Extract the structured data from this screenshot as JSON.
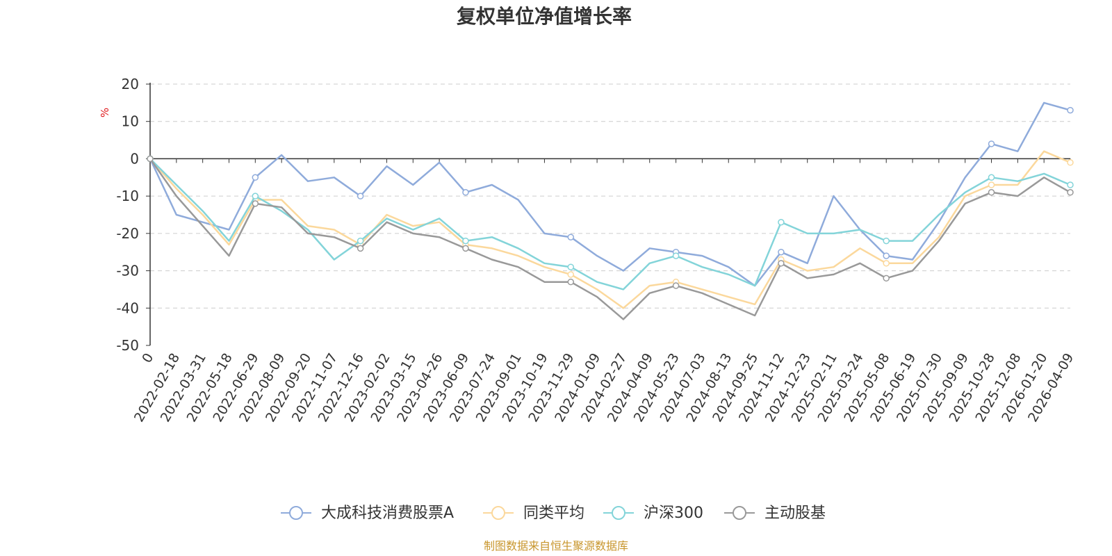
{
  "chart_data": {
    "type": "line",
    "title": "复权单位净值增长率",
    "ylabel": "%",
    "xlabel": "",
    "ylim": [
      -50,
      20
    ],
    "yticks": [
      20,
      10,
      0,
      -10,
      -20,
      -30,
      -40,
      -50
    ],
    "xticks": [
      "0",
      "2022-02-18",
      "2022-03-31",
      "2022-05-18",
      "2022-06-29",
      "2022-08-09",
      "2022-09-20",
      "2022-11-07",
      "2022-12-16",
      "2023-02-02",
      "2023-03-15",
      "2023-04-26",
      "2023-06-09",
      "2023-07-24",
      "2023-09-01",
      "2023-10-19",
      "2023-11-29",
      "2024-01-09",
      "2024-02-27",
      "2024-04-09",
      "2024-05-23",
      "2024-07-03",
      "2024-08-13",
      "2024-09-25",
      "2024-11-12",
      "2024-12-23",
      "2025-02-11",
      "2025-03-24",
      "2025-05-08",
      "2025-06-19",
      "2025-07-30",
      "2025-09-09",
      "2025-10-28",
      "2025-12-08",
      "2026-01-20",
      "2026-04-09"
    ],
    "series": [
      {
        "name": "大成科技消费股票A",
        "color": "#8fabdb",
        "values": [
          0,
          -15,
          -17,
          -19,
          -5,
          1,
          -6,
          -5,
          -10,
          -2,
          -7,
          -1,
          -9,
          -7,
          -11,
          -20,
          -21,
          -26,
          -30,
          -24,
          -25,
          -26,
          -29,
          -34,
          -25,
          -28,
          -10,
          -19,
          -26,
          -27,
          -17,
          -5,
          4,
          2,
          15,
          13
        ]
      },
      {
        "name": "同类平均",
        "color": "#fbd89c",
        "values": [
          0,
          -8,
          -15,
          -23,
          -11,
          -11,
          -18,
          -19,
          -23,
          -15,
          -18,
          -17,
          -23,
          -24,
          -26,
          -29,
          -31,
          -35,
          -40,
          -34,
          -33,
          -35,
          -37,
          -39,
          -27,
          -30,
          -29,
          -24,
          -28,
          -28,
          -21,
          -10,
          -7,
          -7,
          2,
          -1
        ]
      },
      {
        "name": "沪深300",
        "color": "#83d4d9",
        "values": [
          0,
          -7,
          -14,
          -22,
          -10,
          -14,
          -19,
          -27,
          -22,
          -16,
          -19,
          -16,
          -22,
          -21,
          -24,
          -28,
          -29,
          -33,
          -35,
          -28,
          -26,
          -29,
          -31,
          -34,
          -17,
          -20,
          -20,
          -19,
          -22,
          -22,
          -15,
          -9,
          -5,
          -6,
          -4,
          -7
        ]
      },
      {
        "name": "主动股基",
        "color": "#999999",
        "values": [
          0,
          -10,
          -18,
          -26,
          -12,
          -13,
          -20,
          -21,
          -24,
          -17,
          -20,
          -21,
          -24,
          -27,
          -29,
          -33,
          -33,
          -37,
          -43,
          -36,
          -34,
          -36,
          -39,
          -42,
          -28,
          -32,
          -31,
          -28,
          -32,
          -30,
          -22,
          -12,
          -9,
          -10,
          -5,
          -9
        ]
      }
    ]
  },
  "legend": {
    "items": [
      "大成科技消费股票A",
      "同类平均",
      "沪深300",
      "主动股基"
    ]
  },
  "source_note": "制图数据来自恒生聚源数据库"
}
